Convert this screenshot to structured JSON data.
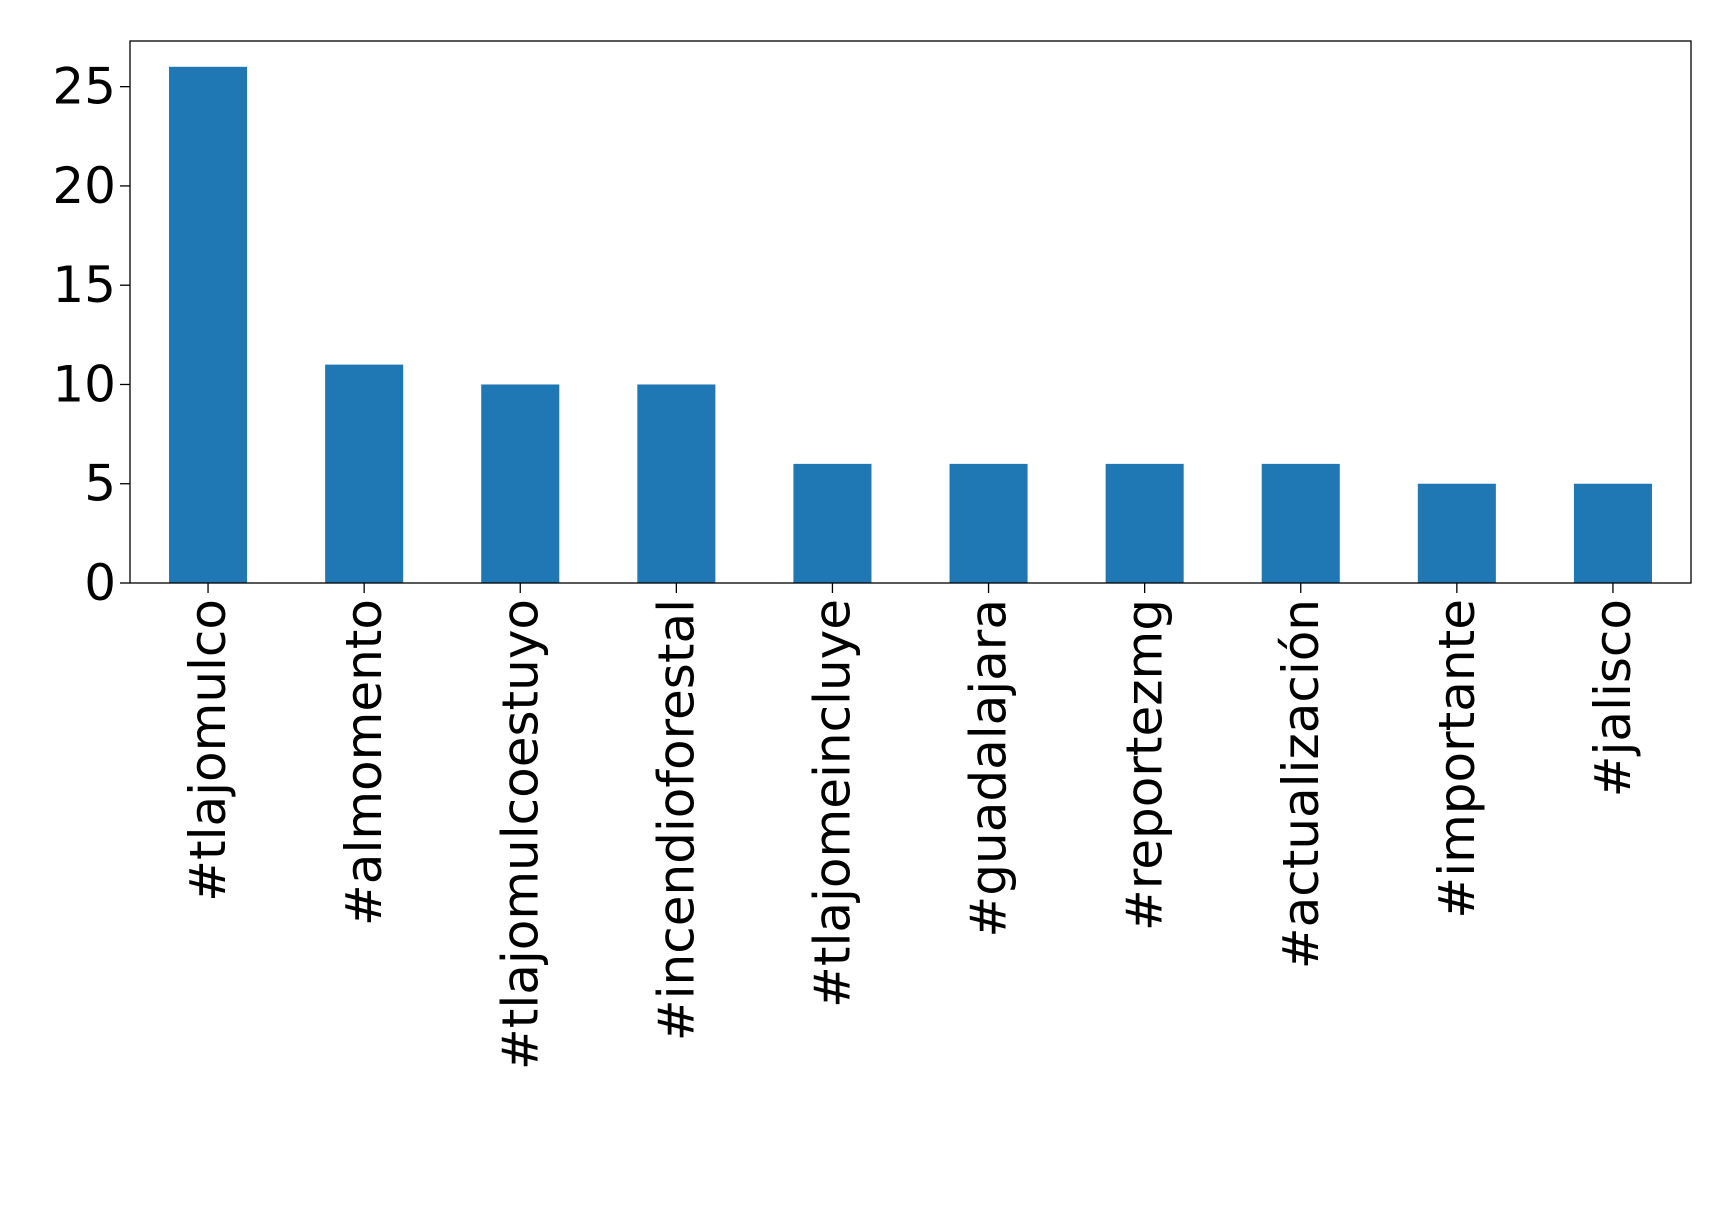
{
  "chart_data": {
    "type": "bar",
    "categories": [
      "#tlajomulco",
      "#almomento",
      "#tlajomulcoestuyo",
      "#incendioforestal",
      "#tlajomeincluye",
      "#guadalajara",
      "#reportezmg",
      "#actualización",
      "#importante",
      "#jalisco"
    ],
    "values": [
      26,
      11,
      10,
      10,
      6,
      6,
      6,
      6,
      5,
      5
    ],
    "y_ticks": [
      0,
      5,
      10,
      15,
      20,
      25
    ],
    "ylim": [
      0,
      27.3
    ],
    "grid": false,
    "bar_color": "#1f77b4",
    "title": "",
    "xlabel": "",
    "ylabel": ""
  }
}
